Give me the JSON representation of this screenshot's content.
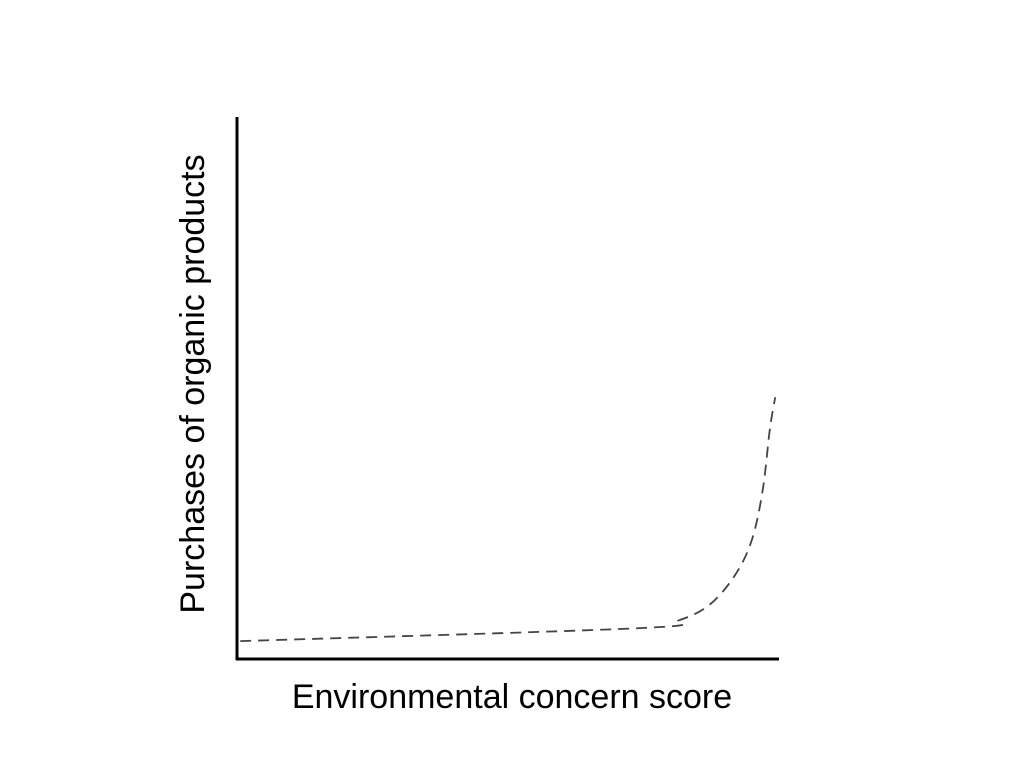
{
  "chart_data": {
    "type": "line",
    "title": "",
    "xlabel": "Environmental concern score",
    "ylabel": "Purchases of organic products",
    "xlim": [
      0,
      100
    ],
    "ylim": [
      0,
      100
    ],
    "grid": false,
    "ticks": false,
    "line_style": "dashed",
    "line_color": "#444444",
    "axis_color": "#000000",
    "series": [
      {
        "x": [
          0.6,
          74.4,
          81.7,
          87.3,
          91.9,
          95.0,
          97.0,
          98.3,
          99.3
        ],
        "y": [
          3.3,
          5.7,
          7.2,
          10.1,
          15.5,
          22.0,
          31.2,
          42.3,
          48.3
        ]
      }
    ]
  }
}
